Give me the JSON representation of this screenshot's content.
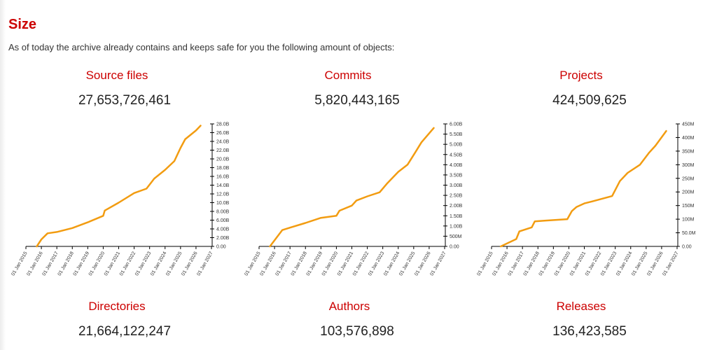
{
  "section": {
    "title": "Size",
    "intro": "As of today the archive already contains and keeps safe for you the following amount of objects:"
  },
  "metrics": [
    {
      "label": "Source files",
      "value": "27,653,726,461"
    },
    {
      "label": "Commits",
      "value": "5,820,443,165"
    },
    {
      "label": "Projects",
      "value": "424,509,625"
    },
    {
      "label": "Directories",
      "value": "21,664,122,247"
    },
    {
      "label": "Authors",
      "value": "103,576,898"
    },
    {
      "label": "Releases",
      "value": "136,423,585"
    }
  ],
  "colors": {
    "accent": "#cc0000",
    "line": "#f29c11"
  },
  "chart_data": [
    {
      "type": "line",
      "title": "Source files",
      "x_ticks": [
        "01 Jan 2015",
        "01 Jan 2016",
        "01 Jan 2017",
        "01 Jan 2018",
        "01 Jan 2019",
        "01 Jan 2020",
        "01 Jan 2021",
        "01 Jan 2022",
        "01 Jan 2023",
        "01 Jan 2024",
        "01 Jan 2025",
        "01 Jan 2026",
        "01 Jan 2027"
      ],
      "xlim": [
        2015,
        2027
      ],
      "ylim": [
        0,
        28000000000
      ],
      "y_ticks": [
        "0.00",
        "2.00B",
        "4.00B",
        "6.00B",
        "8.00B",
        "10.0B",
        "12.0B",
        "14.0B",
        "16.0B",
        "18.0B",
        "20.0B",
        "22.0B",
        "24.0B",
        "26.0B",
        "28.0B"
      ],
      "y_tick_values": [
        0,
        2000000000.0,
        4000000000.0,
        6000000000.0,
        8000000000.0,
        10000000000.0,
        12000000000.0,
        14000000000.0,
        16000000000.0,
        18000000000.0,
        20000000000.0,
        22000000000.0,
        24000000000.0,
        26000000000.0,
        28000000000.0
      ],
      "x": [
        2015.7,
        2016.0,
        2016.4,
        2017.0,
        2018.0,
        2019.0,
        2020.0,
        2020.1,
        2021.0,
        2022.0,
        2022.8,
        2023.3,
        2024.0,
        2024.6,
        2025.0,
        2025.3,
        2026.0,
        2026.3
      ],
      "y": [
        0,
        1600000000.0,
        3000000000.0,
        3300000000.0,
        4200000000.0,
        5500000000.0,
        7000000000.0,
        8200000000.0,
        10000000000.0,
        12200000000.0,
        13200000000.0,
        15500000000.0,
        17500000000.0,
        19500000000.0,
        22500000000.0,
        24500000000.0,
        26500000000.0,
        27600000000.0
      ]
    },
    {
      "type": "line",
      "title": "Commits",
      "x_ticks": [
        "01 Jan 2015",
        "01 Jan 2016",
        "01 Jan 2017",
        "01 Jan 2018",
        "01 Jan 2019",
        "01 Jan 2020",
        "01 Jan 2021",
        "01 Jan 2022",
        "01 Jan 2023",
        "01 Jan 2024",
        "01 Jan 2025",
        "01 Jan 2026",
        "01 Jan 2027"
      ],
      "xlim": [
        2015,
        2027
      ],
      "ylim": [
        0,
        6000000000
      ],
      "y_ticks": [
        "0.00",
        "500M",
        "1.00B",
        "1.50B",
        "2.00B",
        "2.50B",
        "3.00B",
        "3.50B",
        "4.00B",
        "4.50B",
        "5.00B",
        "5.50B",
        "6.00B"
      ],
      "y_tick_values": [
        0,
        500000000.0,
        1000000000.0,
        1500000000.0,
        2000000000.0,
        2500000000.0,
        3000000000.0,
        3500000000.0,
        4000000000.0,
        4500000000.0,
        5000000000.0,
        5500000000.0,
        6000000000.0
      ],
      "x": [
        2015.7,
        2016.5,
        2017.0,
        2018.0,
        2019.0,
        2020.0,
        2020.2,
        2021.0,
        2021.3,
        2022.0,
        2022.8,
        2023.3,
        2024.0,
        2024.6,
        2025.1,
        2025.5,
        2026.3
      ],
      "y": [
        0,
        800000000.0,
        920000000.0,
        1150000000.0,
        1400000000.0,
        1500000000.0,
        1750000000.0,
        2000000000.0,
        2250000000.0,
        2450000000.0,
        2650000000.0,
        3100000000.0,
        3650000000.0,
        4000000000.0,
        4600000000.0,
        5100000000.0,
        5800000000.0
      ]
    },
    {
      "type": "line",
      "title": "Projects",
      "x_ticks": [
        "01 Jan 2015",
        "01 Jan 2016",
        "01 Jan 2017",
        "01 Jan 2018",
        "01 Jan 2019",
        "01 Jan 2020",
        "01 Jan 2021",
        "01 Jan 2022",
        "01 Jan 2023",
        "01 Jan 2024",
        "01 Jan 2025",
        "01 Jan 2026",
        "01 Jan 2027"
      ],
      "xlim": [
        2015,
        2027
      ],
      "ylim": [
        0,
        450000000
      ],
      "y_ticks": [
        "0.00",
        "50.0M",
        "100M",
        "150M",
        "200M",
        "250M",
        "300M",
        "350M",
        "400M",
        "450M"
      ],
      "y_tick_values": [
        0,
        50000000.0,
        100000000.0,
        150000000.0,
        200000000.0,
        250000000.0,
        300000000.0,
        350000000.0,
        400000000.0,
        450000000.0
      ],
      "x": [
        2015.6,
        2016.6,
        2016.8,
        2017.6,
        2017.8,
        2018.5,
        2019.9,
        2020.2,
        2020.5,
        2021.0,
        2021.5,
        2022.8,
        2023.3,
        2023.8,
        2024.6,
        2025.2,
        2025.6,
        2026.3
      ],
      "y": [
        0,
        27000000.0,
        55000000.0,
        70000000.0,
        92000000.0,
        95000000.0,
        100000000.0,
        130000000.0,
        145000000.0,
        158000000.0,
        165000000.0,
        185000000.0,
        240000000.0,
        270000000.0,
        300000000.0,
        345000000.0,
        370000000.0,
        424000000.0
      ]
    }
  ]
}
